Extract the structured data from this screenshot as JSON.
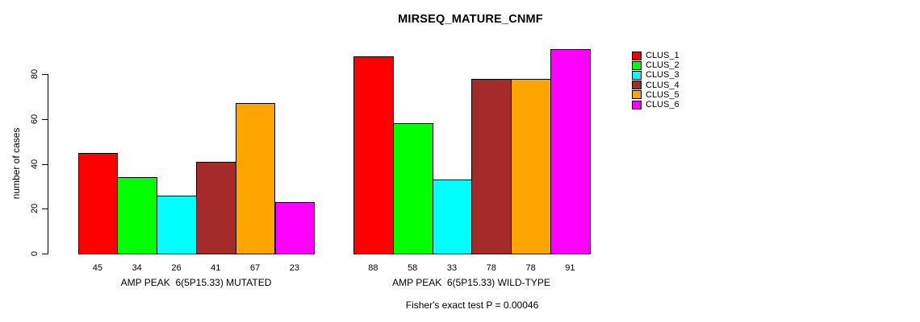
{
  "chart_data": {
    "type": "bar",
    "title": "MIRSEQ_MATURE_CNMF",
    "ylabel": "number of cases",
    "ylim": [
      0,
      80
    ],
    "yticks": [
      0,
      20,
      40,
      60,
      80
    ],
    "grid": false,
    "legend_position": "right",
    "categories": [
      "AMP PEAK  6(5P15.33) MUTATED",
      "AMP PEAK  6(5P15.33) WILD-TYPE"
    ],
    "series": [
      {
        "name": "CLUS_1",
        "color": "#FF0000",
        "values": [
          45,
          88
        ]
      },
      {
        "name": "CLUS_2",
        "color": "#00FF00",
        "values": [
          34,
          58
        ]
      },
      {
        "name": "CLUS_3",
        "color": "#00FFFF",
        "values": [
          26,
          33
        ]
      },
      {
        "name": "CLUS_4",
        "color": "#A52A2A",
        "values": [
          41,
          78
        ]
      },
      {
        "name": "CLUS_5",
        "color": "#FFA500",
        "values": [
          67,
          78
        ]
      },
      {
        "name": "CLUS_6",
        "color": "#FF00FF",
        "values": [
          23,
          91
        ]
      }
    ],
    "bar_value_labels": [
      [
        45,
        34,
        26,
        41,
        67,
        23
      ],
      [
        88,
        58,
        33,
        78,
        78,
        91
      ]
    ],
    "annotation": "Fisher's exact test P = 0.00046"
  }
}
